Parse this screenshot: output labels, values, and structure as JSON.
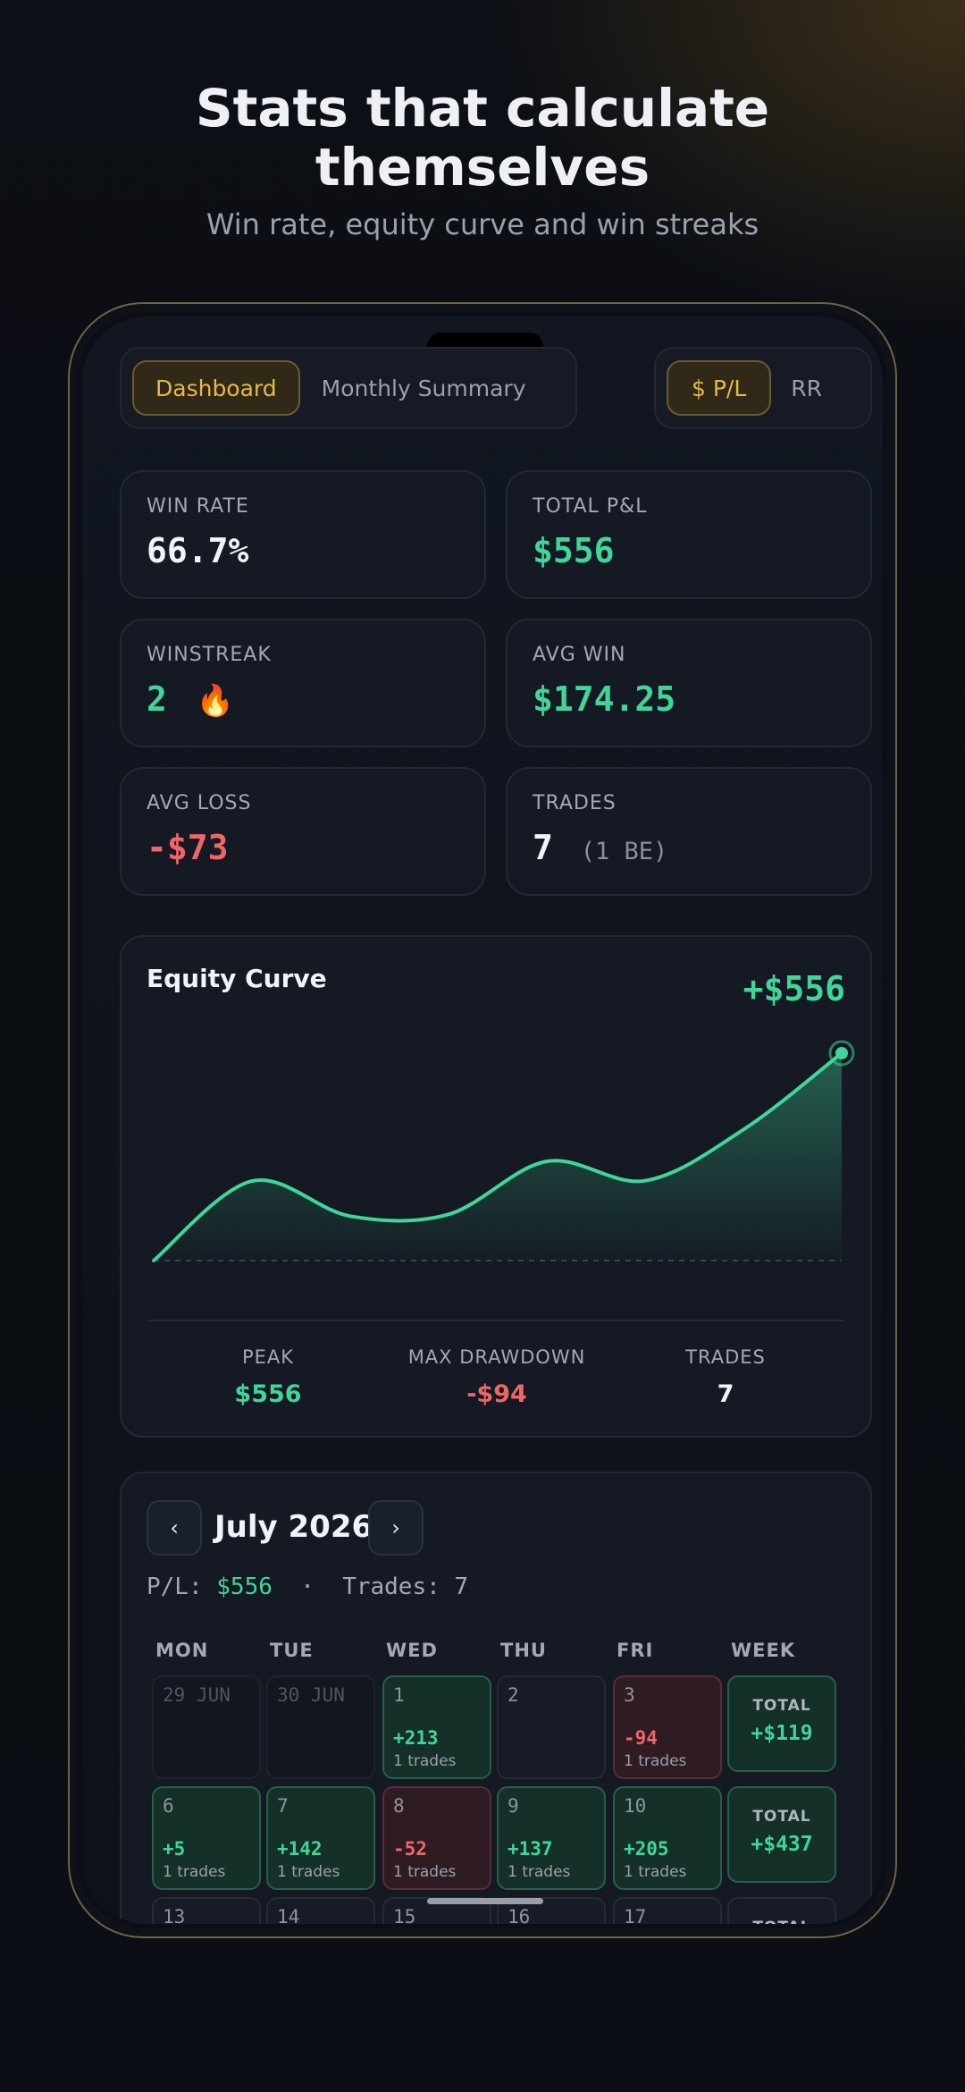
{
  "headline": {
    "title_line1": "Stats that calculate",
    "title_line2": "themselves",
    "subtitle": "Win rate, equity curve and win streaks"
  },
  "tabs": {
    "view": [
      "Dashboard",
      "Monthly Summary"
    ],
    "view_active": "Dashboard",
    "unit": [
      "$ P/L",
      "RR"
    ],
    "unit_active": "$ P/L"
  },
  "stats": {
    "win_rate": {
      "label": "WIN RATE",
      "value": "66.7%"
    },
    "total_pl": {
      "label": "TOTAL P&L",
      "value": "$556"
    },
    "winstreak": {
      "label": "WINSTREAK",
      "value": "2",
      "icon": "fire-icon",
      "icon_glyph": "🔥"
    },
    "avg_win": {
      "label": "AVG WIN",
      "value": "$174.25"
    },
    "avg_loss": {
      "label": "AVG LOSS",
      "value": "-$73"
    },
    "trades": {
      "label": "TRADES",
      "value": "7",
      "extra": "(1 BE)"
    }
  },
  "equity": {
    "title": "Equity Curve",
    "value": "+$556",
    "peak_label": "PEAK",
    "peak_value": "$556",
    "drawdown_label": "MAX DRAWDOWN",
    "drawdown_value": "-$94",
    "trades_label": "TRADES",
    "trades_value": "7",
    "colors": {
      "line": "#3fd697",
      "loss": "#f06566"
    }
  },
  "chart_data": {
    "type": "line",
    "title": "Equity Curve",
    "xlabel": "",
    "ylabel": "",
    "x": [
      0,
      1,
      2,
      3,
      4,
      5,
      6,
      7
    ],
    "values": [
      0,
      213,
      119,
      124,
      266,
      214,
      351,
      556
    ],
    "ylim": [
      0,
      556
    ],
    "grid": false,
    "baseline_dashed": true
  },
  "calendar": {
    "prev_label": "‹",
    "next_label": "›",
    "month": "July 2026",
    "summary_pl_label": "P/L: ",
    "summary_pl_value": "$556",
    "summary_sep": "  ·  ",
    "summary_trades": "Trades: 7",
    "days_of_week": [
      "MON",
      "TUE",
      "WED",
      "THU",
      "FRI",
      "WEEK"
    ],
    "weeks": [
      {
        "days": [
          {
            "date": "29 JUN",
            "state": "past",
            "pl": "",
            "trades": ""
          },
          {
            "date": "30 JUN",
            "state": "past",
            "pl": "",
            "trades": ""
          },
          {
            "date": "1",
            "state": "win",
            "pl": "+213",
            "trades": "1 trades"
          },
          {
            "date": "2",
            "state": "empty",
            "pl": "",
            "trades": ""
          },
          {
            "date": "3",
            "state": "loss",
            "pl": "-94",
            "trades": "1 trades"
          }
        ],
        "total_label": "TOTAL",
        "total_value": "+$119"
      },
      {
        "days": [
          {
            "date": "6",
            "state": "win",
            "pl": "+5",
            "trades": "1 trades"
          },
          {
            "date": "7",
            "state": "win",
            "pl": "+142",
            "trades": "1 trades"
          },
          {
            "date": "8",
            "state": "loss",
            "pl": "-52",
            "trades": "1 trades"
          },
          {
            "date": "9",
            "state": "win",
            "pl": "+137",
            "trades": "1 trades"
          },
          {
            "date": "10",
            "state": "win",
            "pl": "+205",
            "trades": "1 trades"
          }
        ],
        "total_label": "TOTAL",
        "total_value": "+$437"
      },
      {
        "days": [
          {
            "date": "13",
            "state": "empty",
            "pl": "",
            "trades": ""
          },
          {
            "date": "14",
            "state": "empty",
            "pl": "",
            "trades": ""
          },
          {
            "date": "15",
            "state": "empty",
            "pl": "",
            "trades": ""
          },
          {
            "date": "16",
            "state": "empty",
            "pl": "",
            "trades": ""
          },
          {
            "date": "17",
            "state": "empty",
            "pl": "",
            "trades": ""
          }
        ],
        "total_label": "TOTAL",
        "total_value": ""
      }
    ]
  }
}
